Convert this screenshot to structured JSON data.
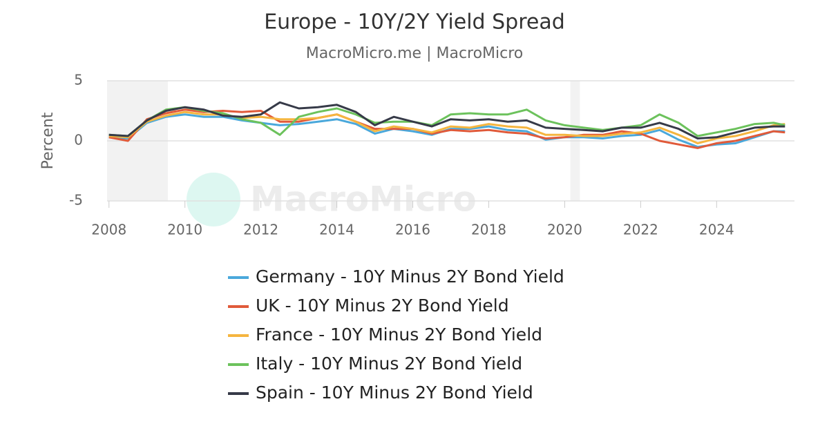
{
  "chart_data": {
    "type": "line",
    "title": "Europe - 10Y/2Y Yield Spread",
    "subtitle": "MacroMicro.me | MacroMicro",
    "watermark": "MacroMicro",
    "y_label": "Percent",
    "x": [
      2008,
      2008.5,
      2009,
      2009.5,
      2010,
      2010.5,
      2011,
      2011.5,
      2012,
      2012.5,
      2013,
      2013.5,
      2014,
      2014.5,
      2015,
      2015.5,
      2016,
      2016.5,
      2017,
      2017.5,
      2018,
      2018.5,
      2019,
      2019.5,
      2020,
      2020.5,
      2021,
      2021.5,
      2022,
      2022.5,
      2023,
      2023.5,
      2024,
      2024.5,
      2025,
      2025.5,
      2025.8
    ],
    "series": [
      {
        "name": "Germany - 10Y Minus 2Y Bond Yield",
        "color": "#4aa8db",
        "values": [
          0.3,
          0.2,
          1.5,
          2.0,
          2.2,
          2.0,
          2.0,
          1.7,
          1.5,
          1.3,
          1.4,
          1.6,
          1.8,
          1.4,
          0.6,
          1.0,
          0.8,
          0.5,
          1.0,
          1.0,
          1.2,
          0.9,
          0.8,
          0.1,
          0.3,
          0.3,
          0.2,
          0.4,
          0.5,
          0.9,
          0.1,
          -0.5,
          -0.3,
          -0.2,
          0.3,
          0.8,
          0.8
        ]
      },
      {
        "name": "UK - 10Y Minus 2Y Bond Yield",
        "color": "#e05a3a",
        "values": [
          0.3,
          0.0,
          1.8,
          2.3,
          2.6,
          2.4,
          2.5,
          2.4,
          2.5,
          1.6,
          1.6,
          1.9,
          2.2,
          1.6,
          1.0,
          1.0,
          1.0,
          0.6,
          0.9,
          0.8,
          0.9,
          0.7,
          0.6,
          0.2,
          0.3,
          0.5,
          0.5,
          0.8,
          0.6,
          0.0,
          -0.3,
          -0.6,
          -0.2,
          0.0,
          0.4,
          0.8,
          0.7
        ]
      },
      {
        "name": "France - 10Y Minus 2Y Bond Yield",
        "color": "#f5b53f",
        "values": [
          0.4,
          0.3,
          1.6,
          2.1,
          2.4,
          2.2,
          2.2,
          1.9,
          2.0,
          1.8,
          1.8,
          1.9,
          2.2,
          1.6,
          0.8,
          1.2,
          1.0,
          0.7,
          1.2,
          1.1,
          1.4,
          1.2,
          1.1,
          0.5,
          0.5,
          0.4,
          0.4,
          0.6,
          0.7,
          1.1,
          0.5,
          -0.2,
          0.2,
          0.4,
          0.8,
          1.3,
          1.4
        ]
      },
      {
        "name": "Italy - 10Y Minus 2Y Bond Yield",
        "color": "#6cc25c",
        "values": [
          0.5,
          0.4,
          1.7,
          2.6,
          2.8,
          2.5,
          2.3,
          1.8,
          1.5,
          0.5,
          2.0,
          2.4,
          2.7,
          2.2,
          1.5,
          1.6,
          1.6,
          1.3,
          2.2,
          2.3,
          2.2,
          2.2,
          2.6,
          1.7,
          1.3,
          1.1,
          0.9,
          1.1,
          1.3,
          2.2,
          1.5,
          0.4,
          0.7,
          1.0,
          1.4,
          1.5,
          1.3
        ]
      },
      {
        "name": "Spain - 10Y Minus 2Y Bond Yield",
        "color": "#363a48",
        "values": [
          0.5,
          0.4,
          1.7,
          2.5,
          2.8,
          2.6,
          2.1,
          2.0,
          2.2,
          3.2,
          2.7,
          2.8,
          3.0,
          2.4,
          1.3,
          2.0,
          1.6,
          1.2,
          1.8,
          1.7,
          1.8,
          1.6,
          1.7,
          1.1,
          1.0,
          0.9,
          0.8,
          1.1,
          1.1,
          1.5,
          1.0,
          0.2,
          0.3,
          0.7,
          1.1,
          1.2,
          1.2
        ]
      }
    ],
    "recessions": [
      [
        2007.95,
        2009.55
      ],
      [
        2020.15,
        2020.4
      ]
    ],
    "xlim": [
      2007.95,
      2026.05
    ],
    "xticks": [
      2008,
      2010,
      2012,
      2014,
      2016,
      2018,
      2020,
      2022,
      2024
    ],
    "ylim": [
      -5,
      5
    ],
    "yticks": [
      5,
      0,
      -5
    ],
    "grid": true
  }
}
